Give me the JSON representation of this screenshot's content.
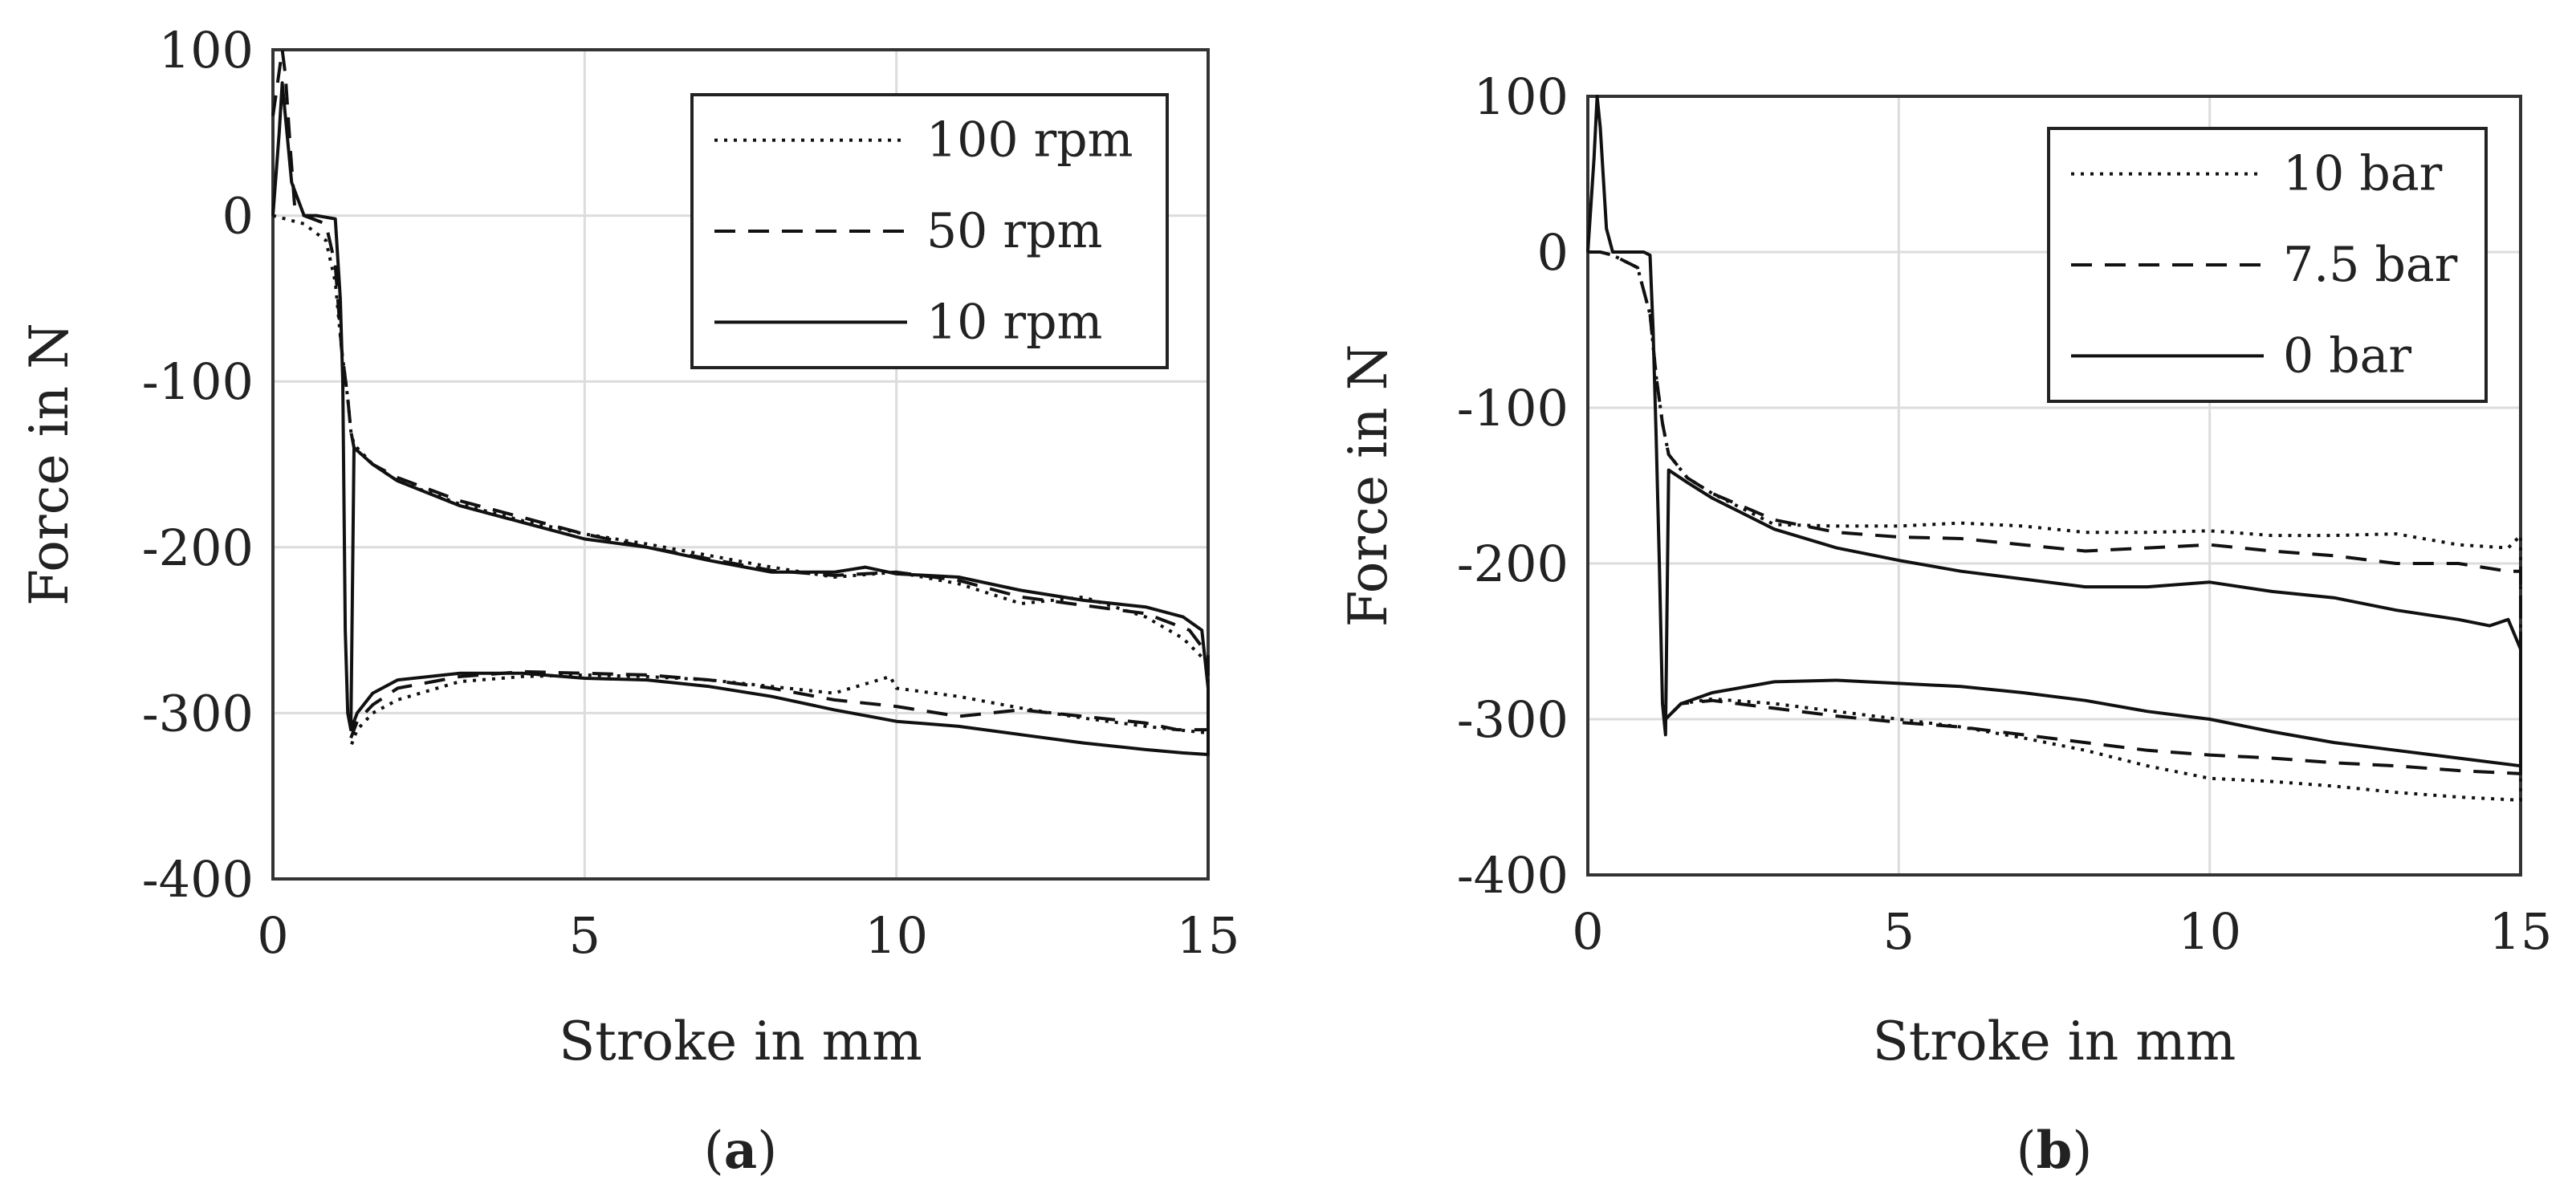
{
  "chart_data": [
    {
      "type": "line",
      "panel_label": {
        "open": "(",
        "letter": "a",
        "close": ")"
      },
      "xlabel": "Stroke in mm",
      "ylabel": "Force in N",
      "xlim": [
        0,
        15
      ],
      "ylim": [
        -400,
        100
      ],
      "xticks": [
        0,
        5,
        10,
        15
      ],
      "yticks": [
        100,
        0,
        -100,
        -200,
        -300,
        -400
      ],
      "grid": true,
      "legend": "top-right",
      "series": [
        {
          "name": "100 rpm",
          "style": "dotted",
          "x": [
            0,
            0.5,
            0.85,
            1.0,
            1.1,
            1.2,
            1.25,
            1.3,
            1.6,
            2,
            3,
            4,
            5,
            6,
            7,
            8,
            9,
            10,
            11,
            12,
            13,
            14,
            14.6,
            15,
            15,
            14.5,
            14,
            13,
            12,
            11,
            10,
            9.9,
            9,
            8,
            7,
            6,
            5,
            4,
            3,
            2,
            1.6,
            1.35,
            1.25
          ],
          "y": [
            0,
            -5,
            -15,
            -40,
            -80,
            -110,
            -130,
            -138,
            -150,
            -160,
            -174,
            -184,
            -192,
            -198,
            -205,
            -212,
            -218,
            -215,
            -222,
            -234,
            -230,
            -242,
            -255,
            -270,
            -312,
            -310,
            -308,
            -303,
            -297,
            -290,
            -285,
            -278,
            -288,
            -284,
            -280,
            -278,
            -277,
            -278,
            -281,
            -292,
            -300,
            -310,
            -320
          ]
        },
        {
          "name": "50 rpm",
          "style": "dashed",
          "x": [
            0,
            0.15,
            0.2,
            0.28,
            0.35,
            0.5,
            0.85,
            1.0,
            1.1,
            1.2,
            1.25,
            1.3,
            1.6,
            2,
            3,
            4,
            5,
            6,
            7,
            8,
            9,
            10,
            11,
            12,
            13,
            14,
            14.7,
            15,
            15,
            14.5,
            14,
            13,
            12,
            11,
            10,
            9,
            8,
            7,
            6,
            5,
            4,
            3,
            2,
            1.6,
            1.35,
            1.25
          ],
          "y": [
            60,
            100,
            85,
            40,
            5,
            0,
            -5,
            -30,
            -80,
            -110,
            -130,
            -140,
            -150,
            -158,
            -172,
            -182,
            -192,
            -200,
            -207,
            -214,
            -217,
            -215,
            -220,
            -230,
            -235,
            -240,
            -250,
            -265,
            -310,
            -310,
            -306,
            -302,
            -298,
            -302,
            -296,
            -292,
            -285,
            -280,
            -277,
            -276,
            -275,
            -278,
            -285,
            -295,
            -305,
            -315
          ]
        },
        {
          "name": "10 rpm",
          "style": "solid",
          "x": [
            0,
            0.1,
            0.15,
            0.2,
            0.3,
            0.45,
            0.5,
            0.7,
            1.0,
            1.08,
            1.12,
            1.16,
            1.2,
            1.25,
            1.3,
            1.6,
            2,
            3,
            4,
            5,
            6,
            7,
            8,
            9,
            9.5,
            10,
            11,
            12,
            13,
            14,
            14.6,
            14.9,
            15,
            15,
            14.6,
            14,
            13,
            12,
            11,
            10,
            9,
            8,
            7,
            6,
            5,
            4,
            3,
            2,
            1.6,
            1.35,
            1.25
          ],
          "y": [
            0,
            50,
            80,
            60,
            20,
            5,
            0,
            0,
            -2,
            -50,
            -100,
            -250,
            -300,
            -310,
            -140,
            -150,
            -160,
            -175,
            -185,
            -195,
            -200,
            -208,
            -215,
            -215,
            -212,
            -216,
            -218,
            -226,
            -232,
            -236,
            -242,
            -250,
            -285,
            -325,
            -324,
            -322,
            -318,
            -313,
            -308,
            -305,
            -298,
            -290,
            -284,
            -280,
            -279,
            -276,
            -276,
            -280,
            -288,
            -300,
            -310
          ]
        }
      ]
    },
    {
      "type": "line",
      "panel_label": {
        "open": "(",
        "letter": "b",
        "close": ")"
      },
      "xlabel": "Stroke in mm",
      "ylabel": "Force in N",
      "xlim": [
        0,
        15
      ],
      "ylim": [
        -400,
        100
      ],
      "xticks": [
        0,
        5,
        10,
        15
      ],
      "yticks": [
        100,
        0,
        -100,
        -200,
        -300,
        -400
      ],
      "grid": true,
      "legend": "top-right",
      "series": [
        {
          "name": "10 bar",
          "style": "dotted",
          "x": [
            0,
            0.2,
            0.4,
            0.8,
            1.0,
            1.1,
            1.2,
            1.3,
            1.6,
            2,
            3,
            4,
            5,
            6,
            7,
            8,
            9,
            10,
            11,
            12,
            13,
            14,
            14.8,
            15,
            15,
            14,
            13,
            12,
            11,
            10,
            9,
            8,
            7,
            6,
            5,
            4,
            3,
            2,
            1.5,
            1.25
          ],
          "y": [
            0,
            0,
            -2,
            -10,
            -40,
            -80,
            -110,
            -130,
            -145,
            -155,
            -175,
            -176,
            -176,
            -174,
            -176,
            -180,
            -180,
            -179,
            -182,
            -182,
            -181,
            -188,
            -190,
            -182,
            -352,
            -350,
            -347,
            -343,
            -340,
            -338,
            -330,
            -320,
            -312,
            -305,
            -300,
            -295,
            -290,
            -287,
            -290,
            -300
          ]
        },
        {
          "name": "7.5 bar",
          "style": "dashed",
          "x": [
            0,
            0.2,
            0.4,
            0.8,
            1.0,
            1.1,
            1.2,
            1.3,
            1.6,
            2,
            3,
            4,
            5,
            6,
            7,
            8,
            9,
            10,
            11,
            12,
            13,
            14,
            14.8,
            15,
            15,
            14,
            13,
            12,
            11,
            10,
            9,
            8,
            7,
            6,
            5,
            4,
            3,
            2,
            1.5,
            1.25
          ],
          "y": [
            0,
            0,
            -2,
            -10,
            -40,
            -80,
            -110,
            -130,
            -145,
            -155,
            -172,
            -180,
            -183,
            -184,
            -188,
            -192,
            -190,
            -188,
            -192,
            -195,
            -200,
            -200,
            -205,
            -205,
            -335,
            -333,
            -330,
            -328,
            -325,
            -323,
            -320,
            -315,
            -310,
            -305,
            -302,
            -298,
            -293,
            -288,
            -290,
            -300
          ]
        },
        {
          "name": "0 bar",
          "style": "solid",
          "x": [
            0,
            0.1,
            0.15,
            0.2,
            0.3,
            0.4,
            0.6,
            0.9,
            1.0,
            1.05,
            1.1,
            1.15,
            1.2,
            1.25,
            1.3,
            1.6,
            2,
            3,
            4,
            5,
            6,
            7,
            8,
            9,
            10,
            11,
            12,
            13,
            14,
            14.5,
            14.8,
            15,
            15,
            14,
            13,
            12,
            11,
            10,
            9,
            8,
            7,
            6,
            5,
            4,
            3,
            2,
            1.5,
            1.25
          ],
          "y": [
            0,
            60,
            100,
            80,
            15,
            0,
            0,
            0,
            -2,
            -50,
            -120,
            -200,
            -290,
            -310,
            -140,
            -148,
            -158,
            -178,
            -190,
            -198,
            -205,
            -210,
            -215,
            -215,
            -212,
            -218,
            -222,
            -230,
            -236,
            -240,
            -236,
            -255,
            -330,
            -325,
            -320,
            -315,
            -308,
            -300,
            -295,
            -288,
            -283,
            -279,
            -277,
            -275,
            -276,
            -283,
            -290,
            -300
          ]
        }
      ]
    }
  ]
}
